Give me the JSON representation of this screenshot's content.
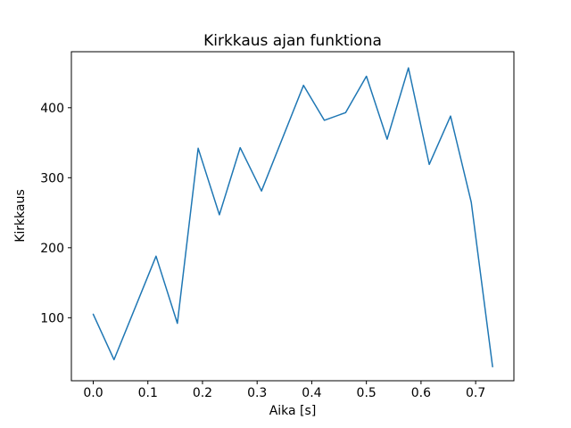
{
  "chart_data": {
    "type": "line",
    "title": "Kirkkaus ajan funktiona",
    "xlabel": "Aika [s]",
    "ylabel": "Kirkkaus",
    "x": [
      0.0,
      0.038,
      0.115,
      0.154,
      0.192,
      0.231,
      0.269,
      0.308,
      0.385,
      0.423,
      0.462,
      0.5,
      0.538,
      0.577,
      0.615,
      0.654,
      0.692,
      0.731
    ],
    "y": [
      105,
      40,
      188,
      92,
      342,
      247,
      343,
      281,
      432,
      382,
      393,
      445,
      355,
      457,
      319,
      388,
      265,
      30
    ],
    "xlim": [
      -0.04,
      0.77
    ],
    "ylim": [
      10,
      480
    ],
    "xticks": [
      0.0,
      0.1,
      0.2,
      0.3,
      0.4,
      0.5,
      0.6,
      0.7
    ],
    "xtick_labels": [
      "0.0",
      "0.1",
      "0.2",
      "0.3",
      "0.4",
      "0.5",
      "0.6",
      "0.7"
    ],
    "yticks": [
      100,
      200,
      300,
      400
    ],
    "ytick_labels": [
      "100",
      "200",
      "300",
      "400"
    ],
    "line_color": "#1f77b4",
    "axis_color": "#000000",
    "grid": false,
    "legend": null
  }
}
